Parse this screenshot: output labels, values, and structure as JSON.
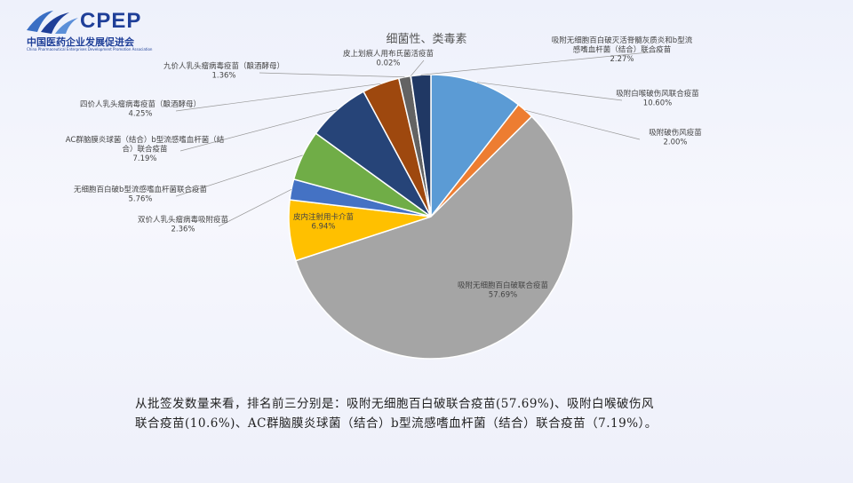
{
  "logo": {
    "icon_name": "cpep-swoosh-logo",
    "wordmark": "CPEP",
    "cn_name": "中国医药企业发展促进会",
    "en_name": "China Pharmaceutical Enterprises Development Promotion Association"
  },
  "chart_data": {
    "type": "pie",
    "title": "细菌性、类毒素",
    "start": "12 o'clock, clockwise",
    "slices": [
      {
        "label": "吸附白喉破伤风联合疫苗",
        "pct_label": "10.60%",
        "value": 10.6,
        "color": "#5b9bd5"
      },
      {
        "label": "吸附破伤风疫苗",
        "pct_label": "2.00%",
        "value": 2.0,
        "color": "#ed7d31"
      },
      {
        "label": "吸附无细胞百白破联合疫苗",
        "pct_label": "57.69%",
        "value": 57.69,
        "color": "#a5a5a5"
      },
      {
        "label": "皮内注射用卡介苗",
        "pct_label": "6.94%",
        "value": 6.94,
        "color": "#ffc000"
      },
      {
        "label": "双价人乳头瘤病毒吸附疫苗",
        "pct_label": "2.36%",
        "value": 2.36,
        "color": "#4472c4"
      },
      {
        "label": "无细胞百白破b型流感嗜血杆菌联合疫苗",
        "pct_label": "5.76%",
        "value": 5.76,
        "color": "#70ad47"
      },
      {
        "label": "AC群脑膜炎球菌（结合）b型流感嗜血杆菌（结合）联合疫苗",
        "pct_label": "7.19%",
        "value": 7.19,
        "color": "#264478"
      },
      {
        "label": "四价人乳头瘤病毒疫苗（酿酒酵母）",
        "pct_label": "4.25%",
        "value": 4.25,
        "color": "#9e480e"
      },
      {
        "label": "九价人乳头瘤病毒疫苗（酿酒酵母）",
        "pct_label": "1.36%",
        "value": 1.36,
        "color": "#636363"
      },
      {
        "label": "皮上划痕人用布氏菌活疫苗",
        "pct_label": "0.02%",
        "value": 0.02,
        "color": "#997300"
      },
      {
        "label": "吸附无细胞百白破灭活脊髓灰质炎和b型流感嗜血杆菌（结合）联合疫苗",
        "pct_label": "2.27%",
        "value": 2.27,
        "color": "#203864"
      }
    ]
  },
  "caption": {
    "line1": "从批签发数量来看，排名前三分别是：吸附无细胞百白破联合疫苗(57.69%)、吸附白喉破伤风",
    "line2": "联合疫苗(10.6%)、AC群脑膜炎球菌（结合）b型流感嗜血杆菌（结合）联合疫苗（7.19%）。"
  }
}
